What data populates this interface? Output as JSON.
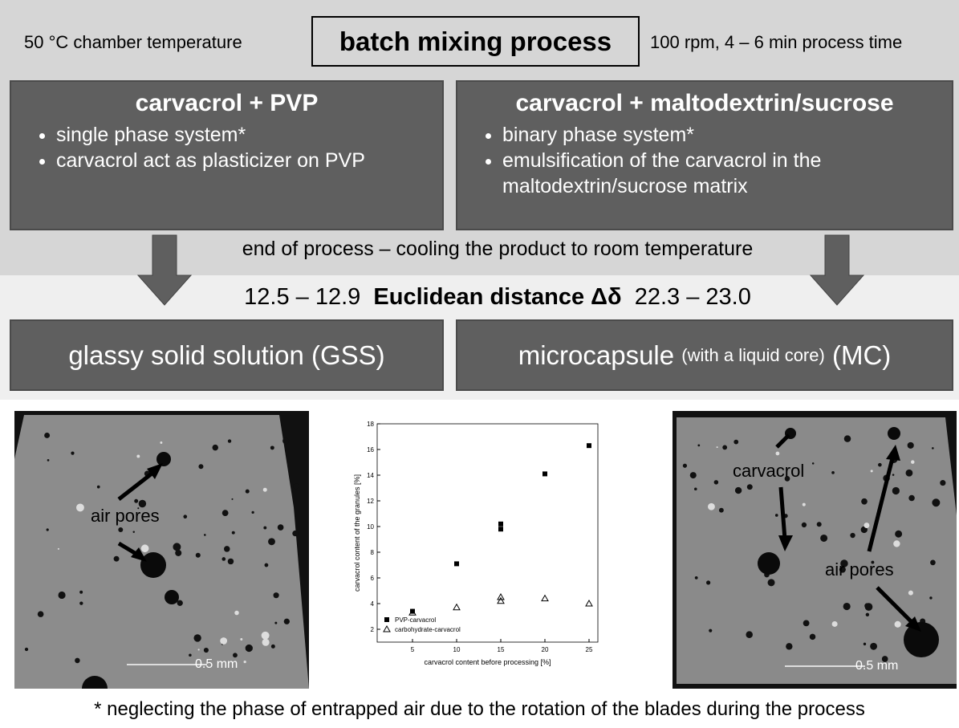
{
  "header": {
    "left_note": "50 °C chamber temperature",
    "title": "batch mixing process",
    "right_note": "100 rpm, 4 – 6 min process time"
  },
  "boxes": [
    {
      "title": "carvacrol + PVP",
      "bullets": [
        "single phase system*",
        "carvacrol act as plasticizer on PVP"
      ]
    },
    {
      "title": "carvacrol + maltodextrin/sucrose",
      "bullets": [
        "binary phase system*",
        "emulsification of the carvacrol in the maltodextrin/sucrose matrix"
      ]
    }
  ],
  "transition": "end of process – cooling the product to room temperature",
  "distance": {
    "left_range": "12.5 – 12.9",
    "label": "Euclidean distance Δδ",
    "right_range": "22.3 – 23.0"
  },
  "results": [
    {
      "parts": [
        "glassy solid solution (GSS)"
      ]
    },
    {
      "parts": [
        "microcapsule",
        "(with a liquid core)",
        "(MC)"
      ]
    }
  ],
  "images": [
    {
      "labels": [
        "air pores"
      ],
      "scale": "0.5 mm"
    },
    {
      "labels": [
        "carvacrol",
        "air pores"
      ],
      "scale": "0.5 mm"
    }
  ],
  "chart_data": {
    "type": "scatter",
    "xlabel": "carvacrol content before processing [%]",
    "ylabel": "carvacrol content of the granules [%]",
    "xlim": [
      1,
      26
    ],
    "ylim": [
      1,
      18
    ],
    "xticks": [
      5,
      10,
      15,
      20,
      25
    ],
    "yticks": [
      2,
      4,
      6,
      8,
      10,
      12,
      14,
      16,
      18
    ],
    "grid": false,
    "legend": "lower left",
    "series": [
      {
        "name": "PVP-carvacrol",
        "color": "#000000",
        "marker": "square",
        "x": [
          5,
          10,
          15,
          15,
          20,
          25
        ],
        "values": [
          3.4,
          7.1,
          10.2,
          9.8,
          14.1,
          16.3
        ]
      },
      {
        "name": "carbohydrate-carvacrol",
        "color": "#000000",
        "marker": "triangle",
        "x": [
          5,
          10,
          15,
          15,
          20,
          25
        ],
        "values": [
          3.3,
          3.7,
          4.5,
          4.2,
          4.4,
          4.0
        ]
      }
    ]
  },
  "footnote": "* neglecting the phase of entrapped air due to the rotation of the blades during the process"
}
